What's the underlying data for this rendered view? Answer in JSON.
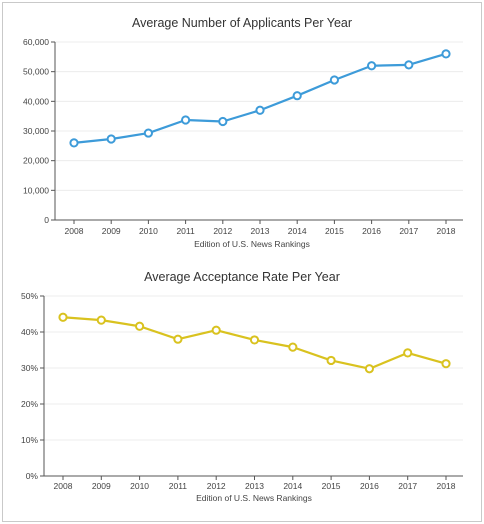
{
  "chart_data": [
    {
      "type": "line",
      "title": "Average Number of Applicants Per Year",
      "xlabel": "Edition of U.S. News Rankings",
      "ylabel": "",
      "categories": [
        "2008",
        "2009",
        "2010",
        "2011",
        "2012",
        "2013",
        "2014",
        "2015",
        "2016",
        "2017",
        "2018"
      ],
      "values": [
        26000,
        27300,
        29300,
        33700,
        33200,
        37000,
        41900,
        47200,
        52000,
        52300,
        56000
      ],
      "ylim": [
        0,
        60000
      ],
      "yticks": [
        0,
        10000,
        20000,
        30000,
        40000,
        50000,
        60000
      ],
      "ytick_labels": [
        "0",
        "10,000",
        "20,000",
        "30,000",
        "40,000",
        "50,000",
        "60,000"
      ],
      "color": "#3d9bd9",
      "grid": true
    },
    {
      "type": "line",
      "title": "Average Acceptance Rate Per Year",
      "xlabel": "Edition of U.S. News Rankings",
      "ylabel": "",
      "categories": [
        "2008",
        "2009",
        "2010",
        "2011",
        "2012",
        "2013",
        "2014",
        "2015",
        "2016",
        "2017",
        "2018"
      ],
      "values": [
        44.1,
        43.3,
        41.6,
        38.0,
        40.5,
        37.8,
        35.8,
        32.1,
        29.8,
        34.2,
        31.2
      ],
      "ylim": [
        0,
        50
      ],
      "yticks": [
        0,
        10,
        20,
        30,
        40,
        50
      ],
      "ytick_labels": [
        "0%",
        "10%",
        "20%",
        "30%",
        "40%",
        "50%"
      ],
      "color": "#d9c21f",
      "grid": true
    }
  ]
}
